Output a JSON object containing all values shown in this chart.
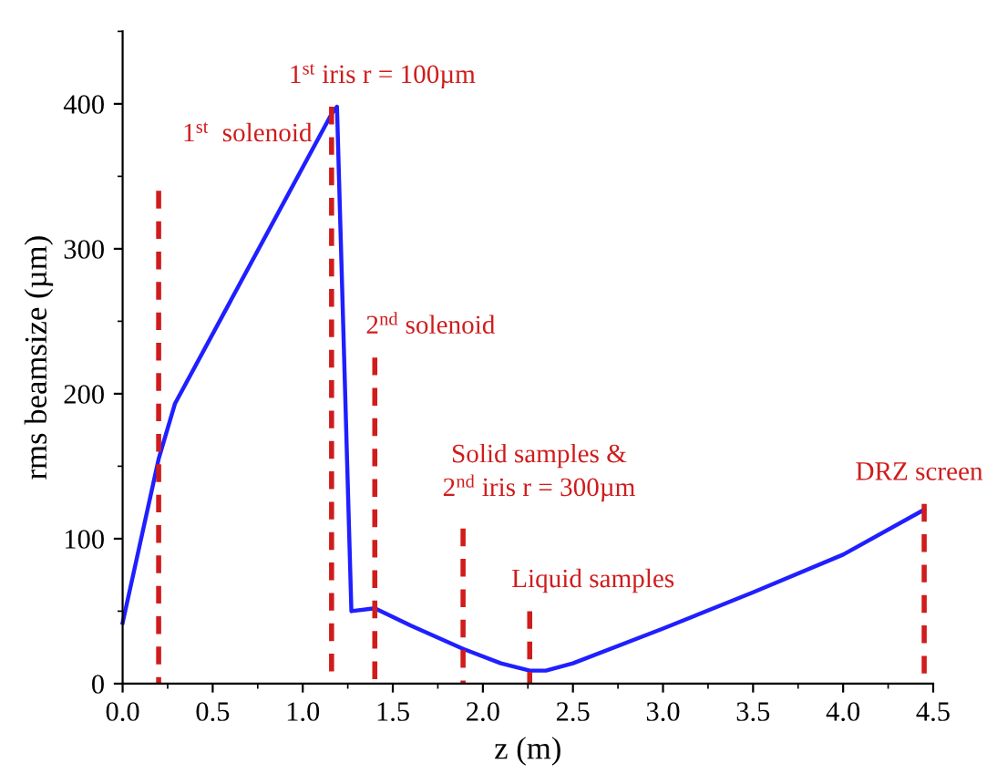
{
  "chart_data": {
    "type": "line",
    "xlabel": "z (m)",
    "ylabel": "rms beamsize (µm)",
    "xlim": [
      0,
      4.5
    ],
    "ylim": [
      0,
      450
    ],
    "xticks": [
      {
        "value": 0,
        "label": "0.0"
      },
      {
        "value": 0.5,
        "label": "0.5"
      },
      {
        "value": 1,
        "label": "1.0"
      },
      {
        "value": 1.5,
        "label": "1.5"
      },
      {
        "value": 2,
        "label": "2.0"
      },
      {
        "value": 2.5,
        "label": "2.5"
      },
      {
        "value": 3,
        "label": "3.0"
      },
      {
        "value": 3.5,
        "label": "3.5"
      },
      {
        "value": 4,
        "label": "4.0"
      },
      {
        "value": 4.5,
        "label": "4.5"
      }
    ],
    "yticks": [
      0,
      100,
      200,
      300,
      400
    ],
    "grid": false,
    "legend": false,
    "series": [
      {
        "color": "#1f1fff",
        "line_style": "solid",
        "x": [
          0,
          0.2,
          0.29,
          1.16,
          1.19,
          1.27,
          1.4,
          1.6,
          1.89,
          2.1,
          2.26,
          2.35,
          2.5,
          3.0,
          3.5,
          4.0,
          4.45
        ],
        "values": [
          42,
          155,
          193,
          393,
          398,
          50,
          52,
          40,
          24,
          14,
          9,
          9,
          14,
          38,
          63,
          89,
          120
        ]
      },
      {
        "color": "#d01c1c",
        "line_style": "dashed",
        "x": [
          0.2,
          0.2
        ],
        "values": [
          340,
          0
        ]
      },
      {
        "color": "#d01c1c",
        "line_style": "dashed",
        "x": [
          1.16,
          1.16
        ],
        "values": [
          398,
          0
        ]
      },
      {
        "color": "#d01c1c",
        "line_style": "dashed",
        "x": [
          1.4,
          1.4
        ],
        "values": [
          225,
          0
        ]
      },
      {
        "color": "#d01c1c",
        "line_style": "dashed",
        "x": [
          1.89,
          1.89
        ],
        "values": [
          107,
          0
        ]
      },
      {
        "color": "#d01c1c",
        "line_style": "dashed",
        "x": [
          2.26,
          2.26
        ],
        "values": [
          50,
          0
        ]
      },
      {
        "color": "#d01c1c",
        "line_style": "dashed",
        "x": [
          4.45,
          4.45
        ],
        "values": [
          124,
          0
        ]
      }
    ],
    "annotations": [
      "1$^{st}$  solenoid",
      "1$^{st}$ iris r = 100µm",
      "2$^{nd}$ solenoid",
      "Solid samples &\n2$^{nd}$ iris r = 300µm",
      "Liquid samples",
      "DRZ screen"
    ]
  }
}
